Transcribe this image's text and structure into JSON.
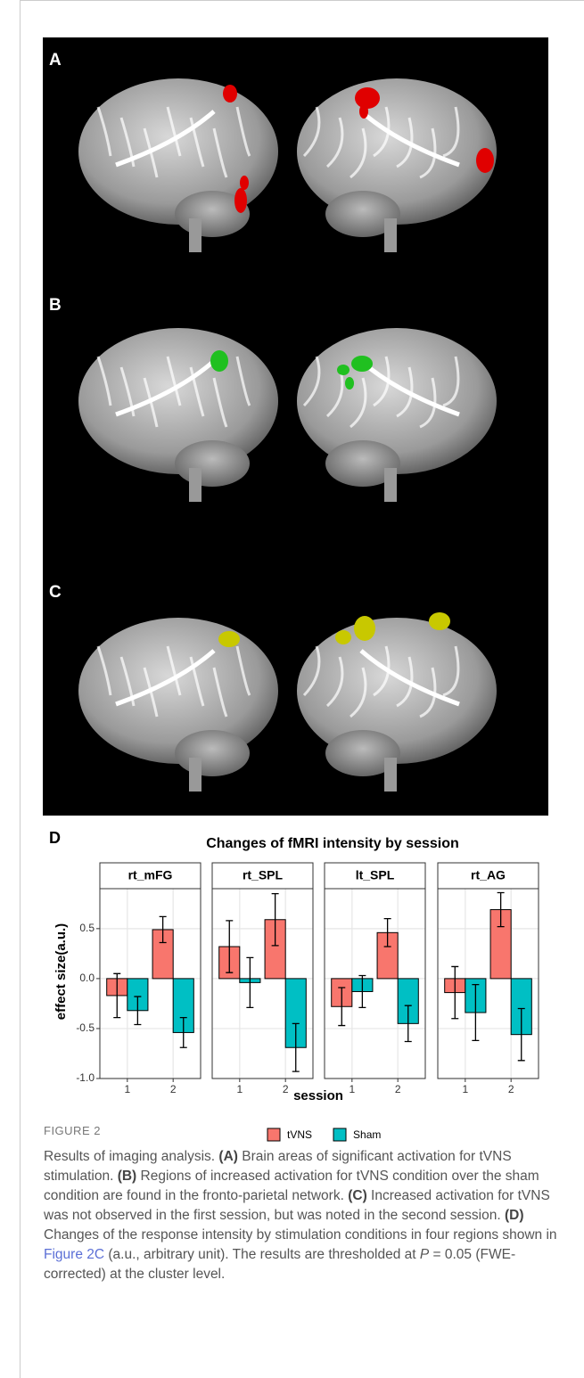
{
  "figure": {
    "panel_labels": [
      "A",
      "B",
      "C",
      "D"
    ]
  },
  "chart_data": {
    "type": "bar",
    "title": "Changes of fMRI intensity by session",
    "xlabel": "session",
    "ylabel": "effect size(a.u.)",
    "categories": [
      "1",
      "2"
    ],
    "ylim": [
      -1.0,
      0.9
    ],
    "yticks": [
      {
        "value": -1.0,
        "label": "-1.0"
      },
      -0.5,
      {
        "value": 0.0,
        "label": "0.0"
      },
      0.5
    ],
    "grid": true,
    "series": [
      {
        "name": "tVNS",
        "color": "#f8766d"
      },
      {
        "name": "Sham",
        "color": "#00bfc4"
      }
    ],
    "facets": [
      {
        "name": "rt_mFG",
        "values": [
          [
            -0.17,
            0.49
          ],
          [
            -0.32,
            -0.54
          ]
        ],
        "errors": [
          [
            0.22,
            0.13
          ],
          [
            0.14,
            0.15
          ]
        ]
      },
      {
        "name": "rt_SPL",
        "values": [
          [
            0.32,
            0.59
          ],
          [
            -0.04,
            -0.69
          ]
        ],
        "errors": [
          [
            0.26,
            0.26
          ],
          [
            0.25,
            0.24
          ]
        ]
      },
      {
        "name": "lt_SPL",
        "values": [
          [
            -0.28,
            0.46
          ],
          [
            -0.13,
            -0.45
          ]
        ],
        "errors": [
          [
            0.19,
            0.14
          ],
          [
            0.16,
            0.18
          ]
        ]
      },
      {
        "name": "rt_AG",
        "values": [
          [
            -0.14,
            0.69
          ],
          [
            -0.34,
            -0.56
          ]
        ],
        "errors": [
          [
            0.26,
            0.17
          ],
          [
            0.28,
            0.26
          ]
        ]
      }
    ]
  },
  "caption": {
    "label": "FIGURE 2",
    "runs": [
      "Results of imaging analysis. ",
      "(A)",
      " Brain areas of significant activation for tVNS stimulation. ",
      "(B)",
      " Regions of increased activation for tVNS condition over the sham condition are found in the fronto-parietal network. ",
      "(C)",
      " Increased activation for tVNS was not observed in the first session, but was noted in the second session. ",
      "(D)",
      " Changes of the response intensity by stimulation conditions in four regions shown in ",
      "Figure 2C",
      " (a.u., arbitrary unit). The results are thresholded at ",
      "P",
      " = 0.05 (FWE-corrected) at the cluster level."
    ]
  }
}
